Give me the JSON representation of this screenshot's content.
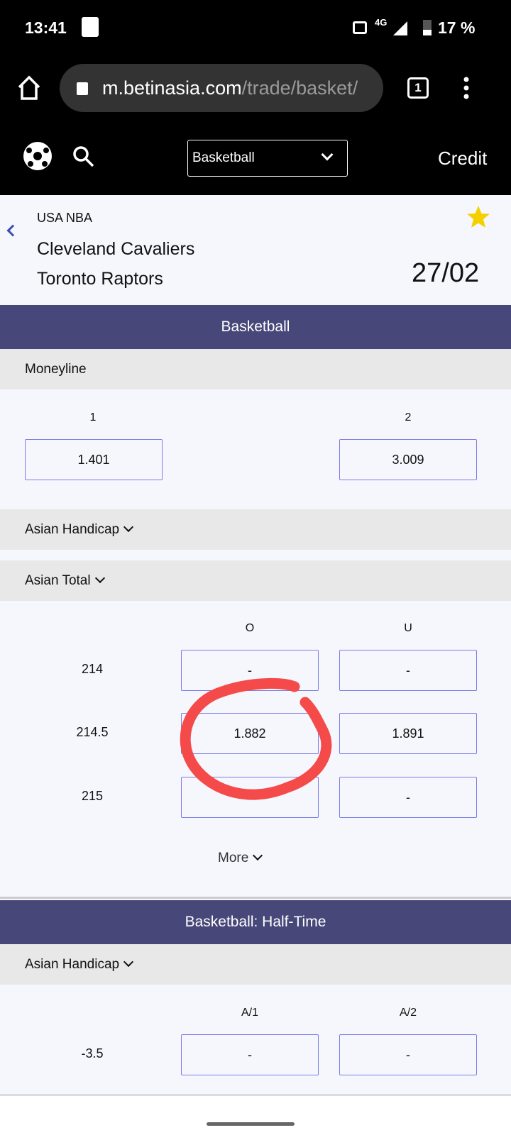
{
  "status_bar": {
    "time": "13:41",
    "network": "4G",
    "battery": "17 %"
  },
  "browser": {
    "url_host": "m.betinasia.com",
    "url_path": "/trade/basket/",
    "tab_count": "1"
  },
  "site_header": {
    "sport_select": "Basketball",
    "credit_label": "Credit"
  },
  "match": {
    "league": "USA NBA",
    "home": "Cleveland Cavaliers",
    "away": "Toronto Raptors",
    "date": "27/02",
    "favorite_color": "#f5d000"
  },
  "sections": {
    "basketball": {
      "title": "Basketball",
      "moneyline": {
        "title": "Moneyline",
        "headers": [
          "1",
          "2"
        ],
        "odds": [
          "1.401",
          "3.009"
        ]
      },
      "asian_handicap": {
        "title": "Asian Handicap"
      },
      "asian_total": {
        "title": "Asian Total",
        "headers": [
          "O",
          "U"
        ],
        "rows": [
          {
            "line": "214",
            "over": "-",
            "under": "-"
          },
          {
            "line": "214.5",
            "over": "1.882",
            "under": "1.891"
          },
          {
            "line": "215",
            "over": "",
            "under": "-"
          }
        ],
        "more_label": "More"
      }
    },
    "half_time": {
      "title": "Basketball: Half-Time",
      "asian_handicap": {
        "title": "Asian Handicap",
        "headers": [
          "A/1",
          "A/2"
        ],
        "rows": [
          {
            "line": "-3.5",
            "a1": "-",
            "a2": "-"
          }
        ]
      }
    }
  },
  "colors": {
    "accent": "#47477a",
    "odds_border": "#7b7be8",
    "annotation": "#f44a4a"
  }
}
